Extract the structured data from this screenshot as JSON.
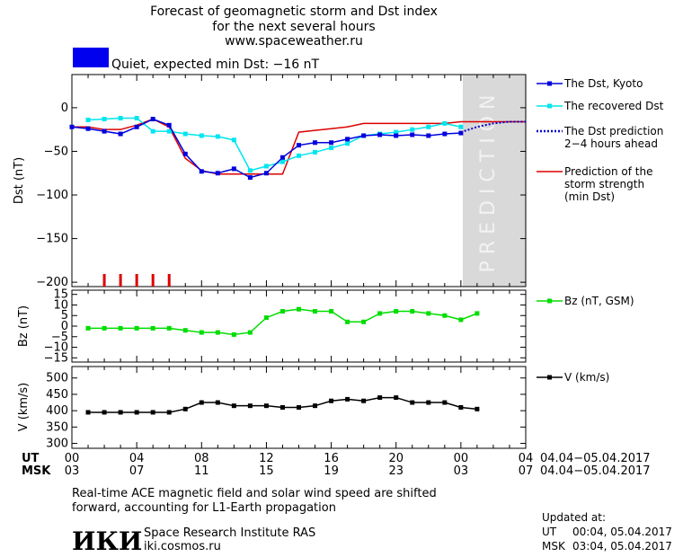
{
  "header": {
    "title_line1": "Forecast of geomagnetic storm and Dst index",
    "title_line2": "for the next several hours",
    "title_line3": "www.spaceweather.ru",
    "status_text": "Quiet, expected min Dst: −16 nT",
    "status_color": "#0000ee"
  },
  "colors": {
    "dst_kyoto": "#0000dd",
    "dst_recovered": "#00e5ee",
    "dst_prediction": "#0000cc",
    "storm_prediction": "#dd0000",
    "bz": "#00dd00",
    "v": "#000000",
    "prediction_band": "#d9d9d9",
    "prediction_text": "#f2f2f2",
    "kp_ticks": "#dd0000"
  },
  "prediction_band_label": "PREDICTION",
  "time_axis": {
    "ut_label": "UT",
    "msk_label": "MSK",
    "ut_ticks": [
      "00",
      "04",
      "08",
      "12",
      "16",
      "20",
      "00",
      "04"
    ],
    "msk_ticks": [
      "03",
      "07",
      "11",
      "15",
      "19",
      "23",
      "03",
      "07"
    ],
    "ut_range": "04.04−05.04.2017",
    "msk_range": "04.04−05.04.2017"
  },
  "chart_data": [
    {
      "type": "line",
      "panel": "dst",
      "ylabel": "Dst (nT)",
      "yticks": [
        "0",
        "−50",
        "−100",
        "−150",
        "−200"
      ],
      "ylim": [
        -205,
        38
      ],
      "xlim": [
        0,
        28
      ],
      "prediction_start": 24,
      "series": [
        {
          "name": "The Dst, Kyoto",
          "x": [
            0,
            1,
            2,
            3,
            4,
            5,
            6,
            7,
            8,
            9,
            10,
            11,
            12,
            13,
            14,
            15,
            16,
            17,
            18,
            19,
            20,
            21,
            22,
            23,
            24
          ],
          "y": [
            -22,
            -24,
            -27,
            -30,
            -22,
            -13,
            -20,
            -53,
            -73,
            -75,
            -70,
            -80,
            -75,
            -57,
            -43,
            -40,
            -40,
            -36,
            -32,
            -31,
            -32,
            -31,
            -32,
            -30,
            -29
          ]
        },
        {
          "name": "The recovered Dst",
          "x": [
            1,
            2,
            3,
            4,
            5,
            6,
            7,
            8,
            9,
            10,
            11,
            12,
            13,
            14,
            15,
            16,
            17,
            18,
            19,
            20,
            21,
            22,
            23,
            24
          ],
          "y": [
            -14,
            -13,
            -12,
            -12,
            -27,
            -27,
            -30,
            -32,
            -33,
            -37,
            -72,
            -67,
            -62,
            -55,
            -51,
            -46,
            -41,
            -32,
            -30,
            -28,
            -25,
            -22,
            -18,
            -22
          ]
        },
        {
          "name": "The Dst prediction\n2−4 hours ahead",
          "x": [
            24,
            25,
            26,
            27,
            28
          ],
          "y": [
            -28,
            -22,
            -18,
            -16,
            -16
          ]
        },
        {
          "name": "Prediction of the\nstorm strength\n(min Dst)",
          "x": [
            0,
            1,
            2,
            3,
            4,
            5,
            6,
            7,
            8,
            9,
            10,
            11,
            12,
            13,
            14,
            15,
            16,
            17,
            18,
            19,
            20,
            21,
            22,
            23,
            24,
            25,
            26,
            27,
            28
          ],
          "y": [
            -22,
            -22,
            -25,
            -25,
            -20,
            -13,
            -22,
            -58,
            -72,
            -76,
            -76,
            -76,
            -76,
            -76,
            -28,
            -26,
            -24,
            -22,
            -18,
            -18,
            -18,
            -18,
            -18,
            -18,
            -16,
            -16,
            -16,
            -16,
            -16
          ]
        }
      ],
      "kp_tick_x": [
        2,
        3,
        4,
        5,
        6
      ]
    },
    {
      "type": "line",
      "panel": "bz",
      "ylabel": "Bz (nT)",
      "yticks": [
        "15",
        "10",
        "5",
        "0",
        "−5",
        "−10",
        "−15"
      ],
      "ylim": [
        -17,
        17
      ],
      "xlim": [
        0,
        28
      ],
      "series": [
        {
          "name": "Bz (nT, GSM)",
          "x": [
            1,
            2,
            3,
            4,
            5,
            6,
            7,
            8,
            9,
            10,
            11,
            12,
            13,
            14,
            15,
            16,
            17,
            18,
            19,
            20,
            21,
            22,
            23,
            24,
            25
          ],
          "y": [
            -1,
            -1,
            -1,
            -1,
            -1,
            -1,
            -2,
            -3,
            -3,
            -4,
            -3,
            4,
            7,
            8,
            7,
            7,
            2,
            2,
            6,
            7,
            7,
            6,
            5,
            3,
            6
          ]
        }
      ]
    },
    {
      "type": "line",
      "panel": "v",
      "ylabel": "V (km/s)",
      "yticks": [
        "500",
        "450",
        "400",
        "350",
        "300"
      ],
      "ylim": [
        285,
        535
      ],
      "xlim": [
        0,
        28
      ],
      "series": [
        {
          "name": "V (km/s)",
          "x": [
            1,
            2,
            3,
            4,
            5,
            6,
            7,
            8,
            9,
            10,
            11,
            12,
            13,
            14,
            15,
            16,
            17,
            18,
            19,
            20,
            21,
            22,
            23,
            24,
            25
          ],
          "y": [
            395,
            395,
            395,
            395,
            395,
            395,
            405,
            425,
            425,
            415,
            415,
            415,
            410,
            410,
            415,
            430,
            435,
            430,
            440,
            440,
            425,
            425,
            425,
            410,
            405
          ]
        }
      ]
    }
  ],
  "footer": {
    "note_line1": "Real-time ACE magnetic field and solar wind speed are shifted",
    "note_line2": "forward, accounting for L1-Earth propagation",
    "logo_text": "ИКИ",
    "institute": "Space Research Institute RAS",
    "site": "iki.cosmos.ru",
    "updated_label": "Updated at:",
    "updated_ut_label": "UT",
    "updated_ut_value": "00:04, 05.04.2017",
    "updated_msk_label": "MSK",
    "updated_msk_value": "03:04, 05.04.2017"
  }
}
